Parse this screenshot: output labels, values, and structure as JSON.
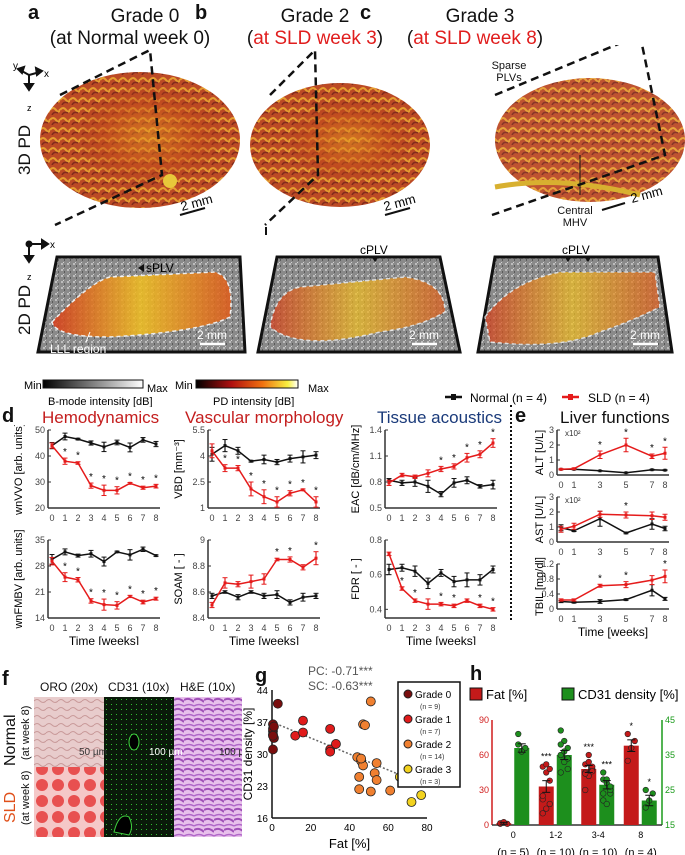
{
  "panels": {
    "a": {
      "label": "a",
      "title": "Grade 0",
      "subtitle_pre": "(",
      "subtitle": "at Normal week 0",
      "subtitle_post": ")"
    },
    "b": {
      "label": "b",
      "title": "Grade 2",
      "subtitle_pre": "(",
      "subtitle": "at SLD week 3",
      "subtitle_post": ")"
    },
    "c": {
      "label": "c",
      "title": "Grade 3",
      "subtitle_pre": "(",
      "subtitle": "at SLD week 8",
      "subtitle_post": ")"
    }
  },
  "row_labels": {
    "pd3d": "3D PD",
    "pd2d": "2D PD"
  },
  "axes_3d": {
    "x": "x",
    "y": "y",
    "z": "z"
  },
  "annotations": {
    "scale": "2 mm",
    "sparse": "Sparse PLVs",
    "central": "Central MHV",
    "splv": "sPLV",
    "cplv": "cPLV",
    "lll": "LLL region"
  },
  "colorbars": {
    "bmode": {
      "min": "Min",
      "max": "Max",
      "label": "B-mode intensity [dB]"
    },
    "pd": {
      "min": "Min",
      "max": "Max",
      "label": "PD intensity [dB]"
    }
  },
  "legend": {
    "normal": "Normal (n = 4)",
    "sld": "SLD (n = 4)",
    "normal_color": "#111111",
    "sld_color": "#e51b1b"
  },
  "section_d": {
    "label": "d",
    "hemo": "Hemodynamics",
    "vasc": "Vascular morphology",
    "tissue": "Tissue acoustics",
    "xlabel": "Time [weeks]"
  },
  "section_e": {
    "label": "e",
    "title": "Liver functions",
    "xlabel": "Time [weeks]",
    "multiplier": "x10²"
  },
  "section_f": {
    "label": "f",
    "cols": [
      "ORO (20x)",
      "CD31 (10x)",
      "H&E (10x)"
    ],
    "row_normal": "Normal",
    "row_normal_sub": "(at week 8)",
    "row_sld": "SLD",
    "row_sld_sub": "(at week 8)",
    "scales": [
      "50 µm",
      "100 µm",
      "100 µm"
    ]
  },
  "chart_data": [
    {
      "id": "wnVVO",
      "type": "line",
      "panel": "d",
      "ylabel": "wnVVO [arb. units]",
      "xlabel": "Time [weeks]",
      "ylim": [
        20,
        50
      ],
      "yticks": [
        20,
        30,
        40,
        50
      ],
      "x": [
        0,
        1,
        2,
        3,
        4,
        5,
        6,
        7,
        8
      ],
      "series": [
        {
          "name": "Normal (n = 4)",
          "values": [
            44,
            47.5,
            46.5,
            45,
            43.5,
            45.2,
            43.3,
            46.2,
            44.6
          ],
          "err": [
            1.2,
            1.3,
            0.3,
            0.8,
            1.8,
            0.9,
            1.7,
            0.9,
            1.0
          ]
        },
        {
          "name": "SLD (n = 4)",
          "values": [
            44,
            38,
            37.3,
            28.6,
            26.8,
            26.8,
            29.5,
            27.8,
            28.4
          ],
          "err": [
            1.0,
            1.2,
            0.5,
            1.0,
            2.0,
            1.4,
            0.3,
            0.6,
            0.7
          ]
        }
      ],
      "significant": [
        1,
        2,
        3,
        4,
        5,
        6,
        7,
        8
      ]
    },
    {
      "id": "wnFMBV",
      "type": "line",
      "panel": "d",
      "ylabel": "wnFMBV [arb. units]",
      "xlabel": "Time [weeks]",
      "ylim": [
        14,
        35
      ],
      "yticks": [
        14,
        21,
        28,
        35
      ],
      "x": [
        0,
        1,
        2,
        3,
        4,
        5,
        6,
        7,
        8
      ],
      "series": [
        {
          "name": "Normal (n = 4)",
          "values": [
            29.8,
            31.8,
            30.8,
            31.3,
            29.2,
            31.8,
            31,
            32.5,
            30.8
          ],
          "err": [
            1.3,
            0.8,
            0.4,
            0.9,
            1.2,
            0.2,
            1.4,
            0.6,
            0.2
          ]
        },
        {
          "name": "SLD (n = 4)",
          "values": [
            29.3,
            25,
            24.3,
            18.6,
            17.6,
            17.4,
            19.8,
            18.3,
            19.2
          ],
          "err": [
            1.0,
            1.2,
            0.6,
            0.6,
            1.5,
            1.0,
            0.3,
            0.5,
            0.4
          ]
        }
      ],
      "significant": [
        1,
        2,
        3,
        4,
        5,
        6,
        7,
        8
      ]
    },
    {
      "id": "VBD",
      "type": "line",
      "panel": "d",
      "ylabel": "VBD [mm⁻³]",
      "xlabel": "Time [weeks]",
      "ylim": [
        1,
        5.5
      ],
      "yticks": [
        1,
        2.5,
        4,
        5.5
      ],
      "x": [
        0,
        1,
        2,
        3,
        4,
        5,
        6,
        7,
        8
      ],
      "series": [
        {
          "name": "Normal (n = 4)",
          "values": [
            4.1,
            4.6,
            4.3,
            3.7,
            3.8,
            3.65,
            3.85,
            3.95,
            4.05
          ],
          "err": [
            0.4,
            0.35,
            0.2,
            0.05,
            0.25,
            0.15,
            0.2,
            0.35,
            0.2
          ]
        },
        {
          "name": "SLD (n = 4)",
          "values": [
            4.3,
            3.3,
            3.3,
            2.1,
            1.65,
            1.35,
            1.85,
            2.05,
            1.35
          ],
          "err": [
            0.4,
            0.2,
            0.15,
            0.4,
            0.4,
            0.3,
            0.15,
            0.05,
            0.3
          ]
        }
      ],
      "significant": [
        1,
        2,
        3,
        4,
        5,
        6,
        7,
        8
      ]
    },
    {
      "id": "SOAM",
      "type": "line",
      "panel": "d",
      "ylabel": "SOAM [ - ]",
      "xlabel": "Time [weeks]",
      "ylim": [
        8.4,
        9
      ],
      "yticks": [
        8.4,
        8.6,
        8.8,
        9
      ],
      "x": [
        0,
        1,
        2,
        3,
        4,
        5,
        6,
        7,
        8
      ],
      "series": [
        {
          "name": "Normal (n = 4)",
          "values": [
            8.57,
            8.6,
            8.56,
            8.6,
            8.57,
            8.58,
            8.52,
            8.56,
            8.57
          ],
          "err": [
            0.02,
            0.01,
            0.02,
            0.01,
            0.02,
            0.03,
            0.02,
            0.03,
            0.02
          ]
        },
        {
          "name": "SLD (n = 4)",
          "values": [
            8.5,
            8.67,
            8.66,
            8.68,
            8.7,
            8.85,
            8.85,
            8.79,
            8.86
          ],
          "err": [
            0.02,
            0.04,
            0.02,
            0.05,
            0.04,
            0.01,
            0.02,
            0.02,
            0.05
          ]
        }
      ],
      "significant": [
        5,
        6,
        8
      ]
    },
    {
      "id": "EAC",
      "type": "line",
      "panel": "d",
      "ylabel": "EAC [dB/cm/MHz]",
      "xlabel": "Time [weeks]",
      "ylim": [
        0.5,
        1.4
      ],
      "yticks": [
        0.5,
        0.8,
        1.1,
        1.4
      ],
      "x": [
        0,
        1,
        2,
        3,
        4,
        5,
        6,
        7,
        8
      ],
      "series": [
        {
          "name": "Normal (n = 4)",
          "values": [
            0.82,
            0.79,
            0.8,
            0.75,
            0.66,
            0.79,
            0.82,
            0.75,
            0.77
          ],
          "err": [
            0.02,
            0.03,
            0.05,
            0.07,
            0.03,
            0.05,
            0.04,
            0.02,
            0.05
          ]
        },
        {
          "name": "SLD (n = 4)",
          "values": [
            0.79,
            0.88,
            0.86,
            0.9,
            0.95,
            0.98,
            1.08,
            1.12,
            1.25
          ],
          "err": [
            0.03,
            0.02,
            0.02,
            0.04,
            0.03,
            0.03,
            0.05,
            0.04,
            0.05
          ]
        }
      ],
      "significant": [
        4,
        5,
        6,
        7,
        8
      ]
    },
    {
      "id": "FDR",
      "type": "line",
      "panel": "d",
      "ylabel": "FDR [ - ]",
      "xlabel": "Time [weeks]",
      "ylim": [
        0.35,
        0.8
      ],
      "yticks": [
        0.4,
        0.6,
        0.8
      ],
      "x": [
        0,
        1,
        2,
        3,
        4,
        5,
        6,
        7,
        8
      ],
      "series": [
        {
          "name": "Normal (n = 4)",
          "values": [
            0.63,
            0.64,
            0.62,
            0.55,
            0.61,
            0.56,
            0.57,
            0.57,
            0.63
          ],
          "err": [
            0.03,
            0.02,
            0.03,
            0.03,
            0.02,
            0.03,
            0.04,
            0.03,
            0.02
          ]
        },
        {
          "name": "SLD (n = 4)",
          "values": [
            0.72,
            0.52,
            0.45,
            0.43,
            0.43,
            0.42,
            0.45,
            0.42,
            0.4
          ],
          "err": [
            0.01,
            0.01,
            0.01,
            0.03,
            0.01,
            0.01,
            0.01,
            0.01,
            0.01
          ]
        }
      ],
      "significant": [
        1,
        2,
        4,
        5,
        7,
        8
      ]
    },
    {
      "id": "ALT",
      "type": "line",
      "panel": "e",
      "ylabel": "ALT [U/L]",
      "multiplier": "x10²",
      "ylim": [
        0,
        3
      ],
      "yticks": [
        0,
        1,
        2,
        3
      ],
      "x": [
        0,
        1,
        3,
        5,
        7,
        8
      ],
      "series": [
        {
          "name": "Normal (n = 4)",
          "values": [
            0.38,
            0.38,
            0.28,
            0.15,
            0.35,
            0.32
          ],
          "err": [
            0.03,
            0.03,
            0.02,
            0.02,
            0.03,
            0.03
          ]
        },
        {
          "name": "SLD (n = 4)",
          "values": [
            0.38,
            0.42,
            1.35,
            2.0,
            1.25,
            1.45
          ],
          "err": [
            0.03,
            0.05,
            0.25,
            0.45,
            0.15,
            0.4
          ]
        }
      ],
      "significant": [
        3,
        5,
        7,
        8
      ]
    },
    {
      "id": "AST",
      "type": "line",
      "panel": "e",
      "ylabel": "AST [U/L]",
      "multiplier": "x10²",
      "ylim": [
        0,
        3
      ],
      "yticks": [
        0,
        1,
        2,
        3
      ],
      "x": [
        0,
        1,
        3,
        5,
        7,
        8
      ],
      "series": [
        {
          "name": "Normal (n = 4)",
          "values": [
            0.95,
            0.75,
            1.55,
            0.6,
            1.2,
            0.9
          ],
          "err": [
            0.2,
            0.05,
            0.5,
            0.05,
            0.35,
            0.15
          ]
        },
        {
          "name": "SLD (n = 4)",
          "values": [
            0.85,
            1.05,
            1.85,
            1.8,
            1.75,
            1.65
          ],
          "err": [
            0.2,
            0.2,
            0.2,
            0.2,
            0.25,
            0.2
          ]
        }
      ],
      "significant": [
        5
      ]
    },
    {
      "id": "TBIL",
      "type": "line",
      "panel": "e",
      "ylabel": "TBIL [mg/dl]",
      "xlabel": "Time [weeks]",
      "ylim": [
        0,
        1.2
      ],
      "yticks": [
        0,
        0.4,
        0.8,
        1.2
      ],
      "x": [
        0,
        1,
        3,
        5,
        7,
        8
      ],
      "series": [
        {
          "name": "Normal (n = 4)",
          "values": [
            0.2,
            0.18,
            0.2,
            0.25,
            0.5,
            0.27
          ],
          "err": [
            0.03,
            0.02,
            0.05,
            0.02,
            0.15,
            0.04
          ]
        },
        {
          "name": "SLD (n = 4)",
          "values": [
            0.24,
            0.24,
            0.62,
            0.65,
            0.77,
            0.87
          ],
          "err": [
            0.03,
            0.03,
            0.04,
            0.08,
            0.12,
            0.17
          ]
        }
      ],
      "significant": [
        3,
        5,
        8
      ]
    },
    {
      "id": "scatter_g",
      "type": "scatter",
      "panel": "g",
      "xlabel": "Fat [%]",
      "ylabel": "CD31 density [%]",
      "xlim": [
        0,
        80
      ],
      "ylim": [
        16,
        44
      ],
      "xticks": [
        0,
        20,
        40,
        60,
        80
      ],
      "yticks": [
        16,
        23,
        30,
        37,
        44
      ],
      "annotations": [
        "PC: -0.71***",
        "SC: -0.63***"
      ],
      "fit_line": {
        "x": [
          0,
          80
        ],
        "y": [
          37,
          23
        ]
      },
      "series": [
        {
          "name": "Grade 0",
          "n_label": "(n = 9)",
          "color": "#7a0e0e",
          "points": [
            [
              3,
              41
            ],
            [
              0.5,
              36.5
            ],
            [
              0.5,
              35
            ],
            [
              0.5,
              34.3
            ],
            [
              1,
              33.5
            ],
            [
              0.5,
              31
            ],
            [
              0.5,
              35.5
            ],
            [
              1,
              36
            ],
            [
              0.5,
              34
            ]
          ]
        },
        {
          "name": "Grade 1",
          "n_label": "(n = 7)",
          "color": "#e01b1b",
          "points": [
            [
              16,
              37.3
            ],
            [
              12,
              34
            ],
            [
              16,
              34.7
            ],
            [
              30,
              35.5
            ],
            [
              30,
              31
            ],
            [
              33,
              32.2
            ],
            [
              30,
              30.5
            ]
          ]
        },
        {
          "name": "Grade 2",
          "n_label": "(n = 14)",
          "color": "#f08030",
          "points": [
            [
              51,
              41.5
            ],
            [
              47,
              36.5
            ],
            [
              48,
              36.3
            ],
            [
              44,
              29.3
            ],
            [
              46,
              28.5
            ],
            [
              47,
              27.5
            ],
            [
              54,
              28
            ],
            [
              45,
              25
            ],
            [
              53,
              25.8
            ],
            [
              54,
              24.3
            ],
            [
              45,
              22.3
            ],
            [
              51,
              21.8
            ],
            [
              61,
              22
            ],
            [
              46,
              29
            ]
          ]
        },
        {
          "name": "Grade 3",
          "n_label": "(n = 3)",
          "color": "#f2d21e",
          "points": [
            [
              66,
              25
            ],
            [
              72,
              19.5
            ],
            [
              77,
              21
            ]
          ]
        }
      ]
    },
    {
      "id": "bar_h",
      "type": "bar",
      "panel": "h",
      "xlabel": "Time [SLD weeks]",
      "categories": [
        "0",
        "1-2",
        "3-4",
        "8"
      ],
      "n_labels": [
        "(n = 5)",
        "(n = 10)",
        "(n = 10)",
        "(n = 4)"
      ],
      "y_left": {
        "label": "Fat [%]",
        "lim": [
          0,
          90
        ],
        "ticks": [
          0,
          30,
          60,
          90
        ],
        "color": "#d01c1c"
      },
      "y_right": {
        "label": "CD31 density [%]",
        "lim": [
          15,
          45
        ],
        "ticks": [
          15,
          25,
          35,
          45
        ],
        "color": "#1a9a1a"
      },
      "series": [
        {
          "name": "Fat [%]",
          "axis": "left",
          "color": "#c41a1a",
          "values": [
            1.5,
            33,
            48,
            68
          ],
          "err": [
            0.8,
            5,
            3,
            5
          ],
          "sig": [
            "",
            "***",
            "***",
            "*"
          ],
          "points": [
            [
              1,
              2,
              1,
              1.5,
              2.5
            ],
            [
              10,
              14,
              18,
              22,
              45,
              48,
              50,
              52,
              38,
              25
            ],
            [
              30,
              42,
              48,
              52,
              54,
              50,
              45,
              60,
              46,
              44
            ],
            [
              55,
              66,
              72,
              78
            ]
          ]
        },
        {
          "name": "CD31 density [%]",
          "axis": "right",
          "color": "#1d8f1d",
          "values": [
            37,
            35,
            26.5,
            22
          ],
          "err": [
            1.2,
            1.3,
            1.2,
            1.5
          ],
          "sig": [
            "",
            "",
            "***",
            "*"
          ],
          "points": [
            [
              41,
              36,
              37,
              38,
              36
            ],
            [
              42,
              39,
              37,
              30,
              33,
              31,
              35,
              36,
              34,
              38
            ],
            [
              30,
              27,
              24,
              22,
              21,
              25,
              28,
              28,
              26,
              24
            ],
            [
              20,
              22,
              24,
              25
            ]
          ]
        }
      ]
    }
  ]
}
